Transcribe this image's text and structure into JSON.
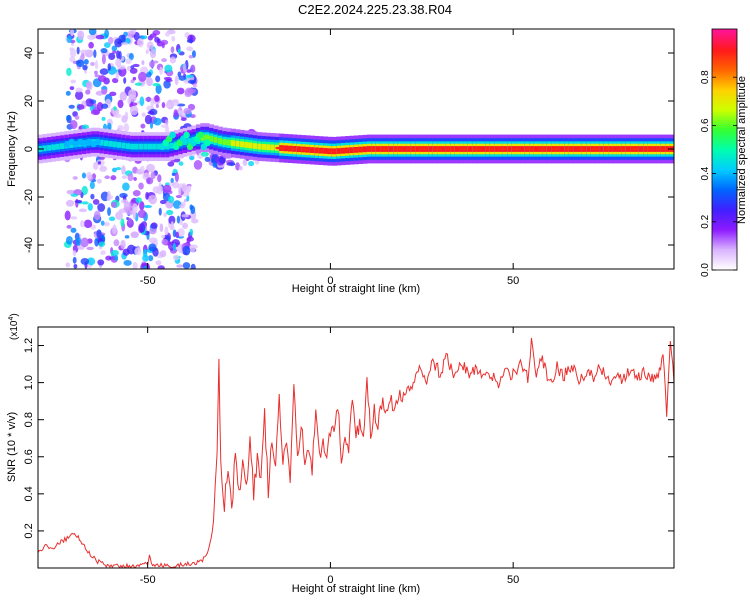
{
  "page": {
    "title": "C2E2.2024.225.23.38.R04"
  },
  "chart_data": [
    {
      "type": "heatmap",
      "title": "C2E2.2024.225.23.38.R04",
      "xlabel": "Height of straight line (km)",
      "ylabel": "Frequency (Hz)",
      "xlim": [
        -80,
        94
      ],
      "ylim": [
        -50,
        50
      ],
      "xticks": [
        -50,
        0,
        50
      ],
      "yticks": [
        -40,
        -20,
        0,
        20,
        40
      ],
      "colorbar": {
        "label": "Normalized spectral amplitude",
        "range": [
          0,
          1
        ],
        "ticks": [
          "0.0",
          "0.2",
          "0.4",
          "0.6",
          "0.8"
        ],
        "colormap": [
          "#ffffff",
          "#d9b3ff",
          "#8c1aff",
          "#4020ff",
          "#0066ff",
          "#00ccff",
          "#00ffb0",
          "#33ff33",
          "#ccff00",
          "#ffd200",
          "#ff6600",
          "#ff1a1a",
          "#ff1493"
        ]
      },
      "band_center_freq": [
        [
          -80,
          0
        ],
        [
          -70,
          2
        ],
        [
          -65,
          3
        ],
        [
          -55,
          1
        ],
        [
          -45,
          1
        ],
        [
          -40,
          3
        ],
        [
          -35,
          5
        ],
        [
          -30,
          3
        ],
        [
          -25,
          2
        ],
        [
          -20,
          1
        ],
        [
          -10,
          0
        ],
        [
          0,
          -1
        ],
        [
          10,
          0
        ],
        [
          20,
          0
        ],
        [
          94,
          0
        ]
      ],
      "grid": false
    },
    {
      "type": "line",
      "xlabel": "Height of straight line (km)",
      "ylabel": "SNR (10 * v/v)",
      "y_multiplier": "(x10",
      "y_multiplier_exp": "4",
      "y_multiplier_close": ")",
      "xlim": [
        -80,
        94
      ],
      "ylim": [
        0,
        1.3
      ],
      "xticks": [
        -50,
        0,
        50
      ],
      "yticks": [
        0.2,
        0.4,
        0.6,
        0.8,
        1.0,
        1.2
      ],
      "color": "#e8302e",
      "series": [
        {
          "x": [
            -80,
            -78,
            -76,
            -74,
            -72,
            -70,
            -68,
            -66,
            -64,
            -62,
            -60,
            -55,
            -50,
            -49.5,
            -49,
            -45,
            -40,
            -36,
            -34,
            -33,
            -32,
            -31.5,
            -31,
            -30.5,
            -30,
            -29,
            -28,
            -27,
            -26,
            -25,
            -24,
            -23,
            -22,
            -21,
            -20,
            -19,
            -18,
            -17,
            -16,
            -15,
            -14,
            -13,
            -12,
            -11,
            -10,
            -9,
            -8,
            -7,
            -6,
            -5,
            -4,
            -3,
            -2,
            -1,
            0,
            1,
            2,
            3,
            4,
            5,
            6,
            7,
            8,
            9,
            10,
            11,
            12,
            13,
            14,
            15,
            16,
            18,
            20,
            22,
            24,
            26,
            28,
            30,
            32,
            34,
            36,
            38,
            40,
            42,
            44,
            46,
            48,
            50,
            52,
            54,
            55,
            56,
            58,
            60,
            62,
            64,
            66,
            68,
            70,
            72,
            74,
            76,
            78,
            80,
            82,
            84,
            86,
            88,
            90,
            91,
            92,
            93,
            94
          ],
          "y": [
            0.08,
            0.12,
            0.1,
            0.14,
            0.16,
            0.19,
            0.14,
            0.08,
            0.04,
            0.02,
            0.01,
            0.01,
            0.02,
            0.07,
            0.02,
            0.01,
            0.02,
            0.03,
            0.06,
            0.12,
            0.25,
            0.45,
            0.62,
            1.12,
            0.55,
            0.35,
            0.55,
            0.3,
            0.62,
            0.38,
            0.55,
            0.42,
            0.72,
            0.4,
            0.6,
            0.48,
            0.82,
            0.42,
            0.7,
            0.5,
            0.95,
            0.55,
            0.68,
            0.48,
            1.02,
            0.58,
            0.8,
            0.55,
            0.62,
            0.52,
            0.85,
            0.58,
            0.7,
            0.55,
            0.75,
            0.7,
            0.88,
            0.6,
            0.72,
            0.62,
            0.95,
            0.7,
            0.8,
            0.68,
            1.0,
            0.72,
            0.85,
            0.78,
            0.9,
            0.85,
            0.92,
            0.88,
            0.96,
            0.95,
            1.08,
            1.0,
            1.12,
            1.05,
            1.14,
            1.02,
            1.1,
            1.04,
            1.08,
            1.02,
            1.05,
            1.0,
            1.06,
            1.04,
            1.1,
            1.03,
            1.22,
            1.05,
            1.12,
            1.0,
            1.08,
            1.04,
            1.1,
            1.02,
            1.06,
            1.03,
            1.08,
            1.0,
            1.05,
            1.02,
            1.08,
            1.04,
            1.06,
            1.03,
            1.05,
            1.18,
            0.85,
            1.25,
            1.0
          ]
        }
      ],
      "grid": false
    }
  ]
}
